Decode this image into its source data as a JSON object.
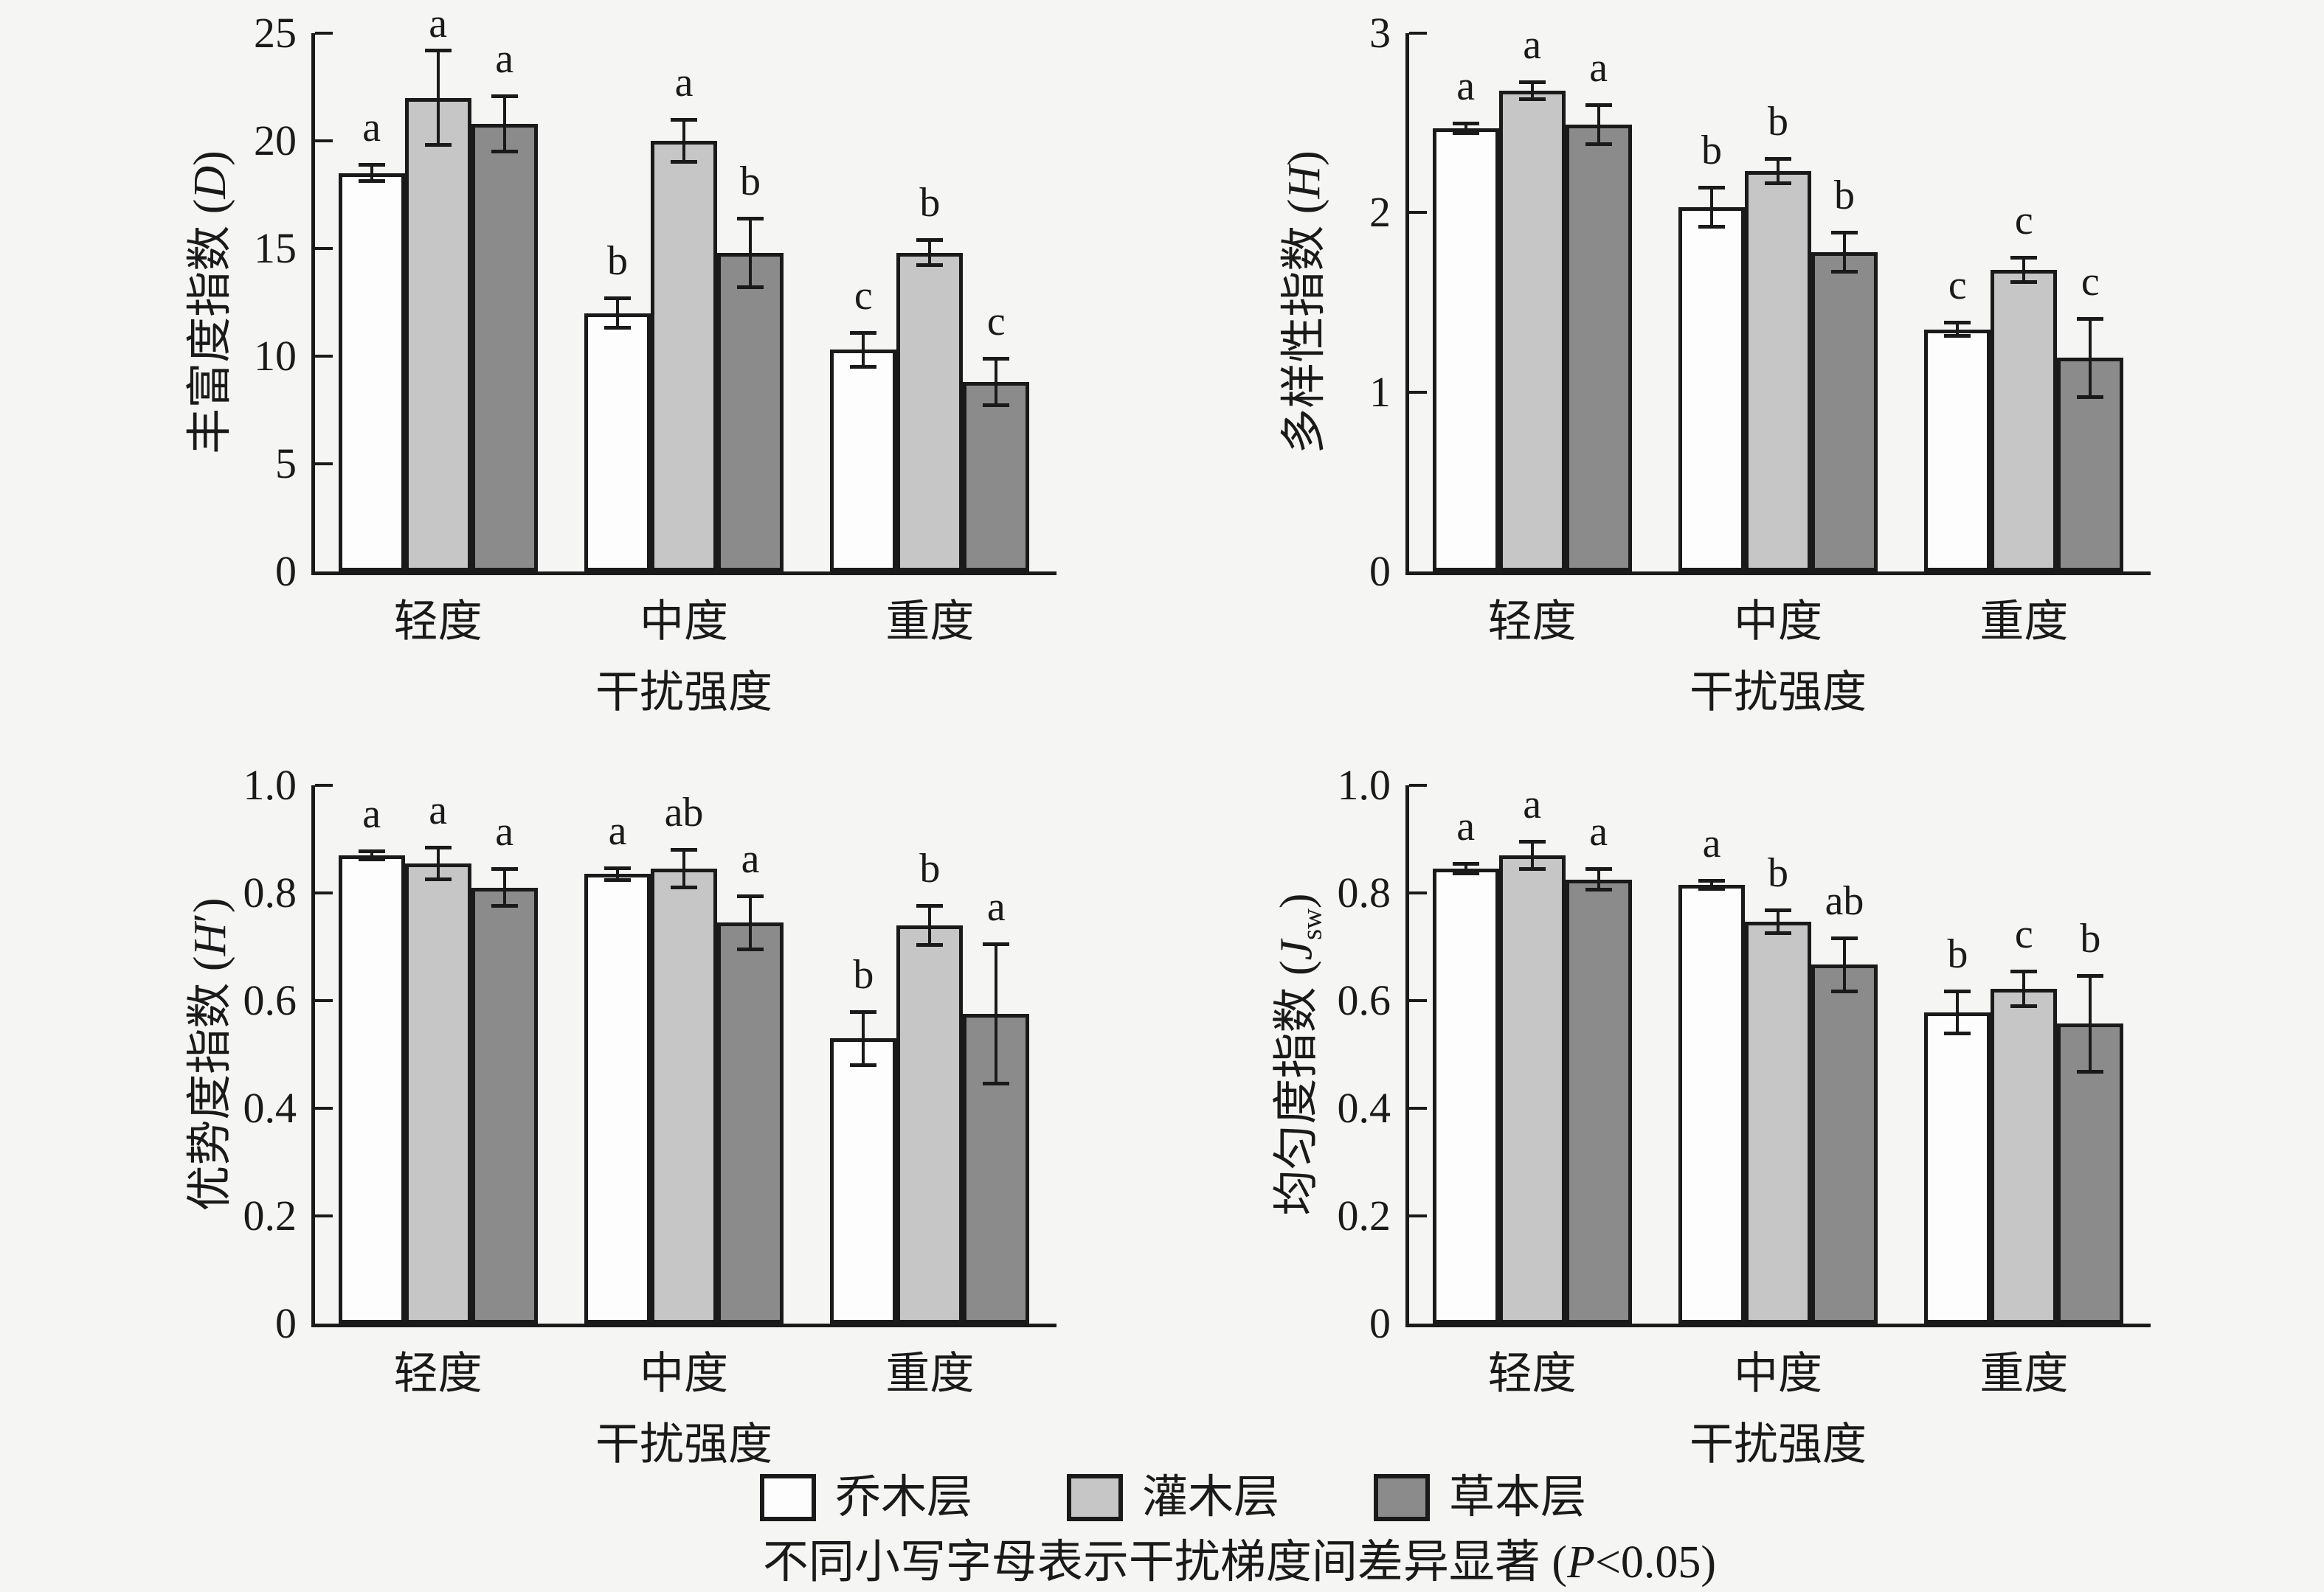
{
  "figure": {
    "background_color": "#f5f5f4",
    "ink_color": "#1a1a1a",
    "x_axis_title": "干扰强度",
    "categories": [
      "轻度",
      "中度",
      "重度"
    ]
  },
  "legend": {
    "items": [
      {
        "label": "乔木层",
        "color": "#fdfdfd"
      },
      {
        "label": "灌木层",
        "color": "#c6c6c6"
      },
      {
        "label": "草本层",
        "color": "#8b8b8b"
      }
    ]
  },
  "caption": {
    "pre": "不同小写字母表示干扰梯度间差异显著 (",
    "italic": "P",
    "post": "<0.05)"
  },
  "chart_data": [
    {
      "type": "bar",
      "ylabel": "丰富度指数 (D)",
      "ylabel_text": "丰富度指数",
      "ylabel_symbol": "D",
      "ylabel_symbol_sub": "",
      "ylabel_symbol_prime": "",
      "xlabel": "干扰强度",
      "categories": [
        "轻度",
        "中度",
        "重度"
      ],
      "ylim": [
        0,
        25
      ],
      "yticks": [
        {
          "v": 0,
          "label": "0"
        },
        {
          "v": 5,
          "label": "5"
        },
        {
          "v": 10,
          "label": "10"
        },
        {
          "v": 15,
          "label": "15"
        },
        {
          "v": 20,
          "label": "20"
        },
        {
          "v": 25,
          "label": "25"
        }
      ],
      "series": [
        {
          "name": "乔木层",
          "color": "#fdfdfd",
          "values": [
            18.5,
            12.0,
            10.3
          ],
          "errors": [
            0.4,
            0.7,
            0.8
          ],
          "letters": [
            "a",
            "b",
            "c"
          ]
        },
        {
          "name": "灌木层",
          "color": "#c6c6c6",
          "values": [
            22.0,
            20.0,
            14.8
          ],
          "errors": [
            2.2,
            1.0,
            0.6
          ],
          "letters": [
            "a",
            "a",
            "b"
          ]
        },
        {
          "name": "草本层",
          "color": "#8b8b8b",
          "values": [
            20.8,
            14.8,
            8.8
          ],
          "errors": [
            1.3,
            1.6,
            1.1
          ],
          "letters": [
            "a",
            "b",
            "c"
          ]
        }
      ],
      "legend_position": "bottom",
      "grid": false
    },
    {
      "type": "bar",
      "ylabel": "多样性指数 (H)",
      "ylabel_text": "多样性指数",
      "ylabel_symbol": "H",
      "ylabel_symbol_sub": "",
      "ylabel_symbol_prime": "",
      "xlabel": "干扰强度",
      "categories": [
        "轻度",
        "中度",
        "重度"
      ],
      "ylim": [
        0,
        3
      ],
      "yticks": [
        {
          "v": 0,
          "label": "0"
        },
        {
          "v": 1,
          "label": "1"
        },
        {
          "v": 2,
          "label": "2"
        },
        {
          "v": 3,
          "label": "3"
        }
      ],
      "series": [
        {
          "name": "乔木层",
          "color": "#fdfdfd",
          "values": [
            2.47,
            2.03,
            1.35
          ],
          "errors": [
            0.03,
            0.11,
            0.04
          ],
          "letters": [
            "a",
            "b",
            "c"
          ]
        },
        {
          "name": "灌木层",
          "color": "#c6c6c6",
          "values": [
            2.68,
            2.23,
            1.68
          ],
          "errors": [
            0.05,
            0.07,
            0.07
          ],
          "letters": [
            "a",
            "b",
            "c"
          ]
        },
        {
          "name": "草本层",
          "color": "#8b8b8b",
          "values": [
            2.49,
            1.78,
            1.19
          ],
          "errors": [
            0.11,
            0.11,
            0.22
          ],
          "letters": [
            "a",
            "b",
            "c"
          ]
        }
      ],
      "legend_position": "bottom",
      "grid": false
    },
    {
      "type": "bar",
      "ylabel": "优势度指数 (H′)",
      "ylabel_text": "优势度指数",
      "ylabel_symbol": "H",
      "ylabel_symbol_sub": "",
      "ylabel_symbol_prime": "′",
      "xlabel": "干扰强度",
      "categories": [
        "轻度",
        "中度",
        "重度"
      ],
      "ylim": [
        0,
        1.0
      ],
      "yticks": [
        {
          "v": 0,
          "label": "0"
        },
        {
          "v": 0.2,
          "label": "0.2"
        },
        {
          "v": 0.4,
          "label": "0.4"
        },
        {
          "v": 0.6,
          "label": "0.6"
        },
        {
          "v": 0.8,
          "label": "0.8"
        },
        {
          "v": 1.0,
          "label": "1.0"
        }
      ],
      "series": [
        {
          "name": "乔木层",
          "color": "#fdfdfd",
          "values": [
            0.87,
            0.835,
            0.53
          ],
          "errors": [
            0.008,
            0.012,
            0.05
          ],
          "letters": [
            "a",
            "a",
            "b"
          ]
        },
        {
          "name": "灌木层",
          "color": "#c6c6c6",
          "values": [
            0.855,
            0.845,
            0.74
          ],
          "errors": [
            0.03,
            0.036,
            0.037
          ],
          "letters": [
            "a",
            "ab",
            "b"
          ]
        },
        {
          "name": "草本层",
          "color": "#8b8b8b",
          "values": [
            0.81,
            0.745,
            0.575
          ],
          "errors": [
            0.035,
            0.05,
            0.13
          ],
          "letters": [
            "a",
            "a",
            "a"
          ]
        }
      ],
      "legend_position": "bottom",
      "grid": false
    },
    {
      "type": "bar",
      "ylabel": "均匀度指数 (Jsw)",
      "ylabel_text": "均匀度指数",
      "ylabel_symbol": "J",
      "ylabel_symbol_sub": "sw",
      "ylabel_symbol_prime": "",
      "xlabel": "干扰强度",
      "categories": [
        "轻度",
        "中度",
        "重度"
      ],
      "ylim": [
        0,
        1.0
      ],
      "yticks": [
        {
          "v": 0,
          "label": "0"
        },
        {
          "v": 0.2,
          "label": "0.2"
        },
        {
          "v": 0.4,
          "label": "0.4"
        },
        {
          "v": 0.6,
          "label": "0.6"
        },
        {
          "v": 0.8,
          "label": "0.8"
        },
        {
          "v": 1.0,
          "label": "1.0"
        }
      ],
      "series": [
        {
          "name": "乔木层",
          "color": "#fdfdfd",
          "values": [
            0.845,
            0.815,
            0.578
          ],
          "errors": [
            0.01,
            0.008,
            0.04
          ],
          "letters": [
            "a",
            "a",
            "b"
          ]
        },
        {
          "name": "灌木层",
          "color": "#c6c6c6",
          "values": [
            0.87,
            0.747,
            0.622
          ],
          "errors": [
            0.026,
            0.022,
            0.033
          ],
          "letters": [
            "a",
            "b",
            "c"
          ]
        },
        {
          "name": "草本层",
          "color": "#8b8b8b",
          "values": [
            0.825,
            0.667,
            0.557
          ],
          "errors": [
            0.02,
            0.05,
            0.09
          ],
          "letters": [
            "a",
            "ab",
            "b"
          ]
        }
      ],
      "legend_position": "bottom",
      "grid": false
    }
  ]
}
